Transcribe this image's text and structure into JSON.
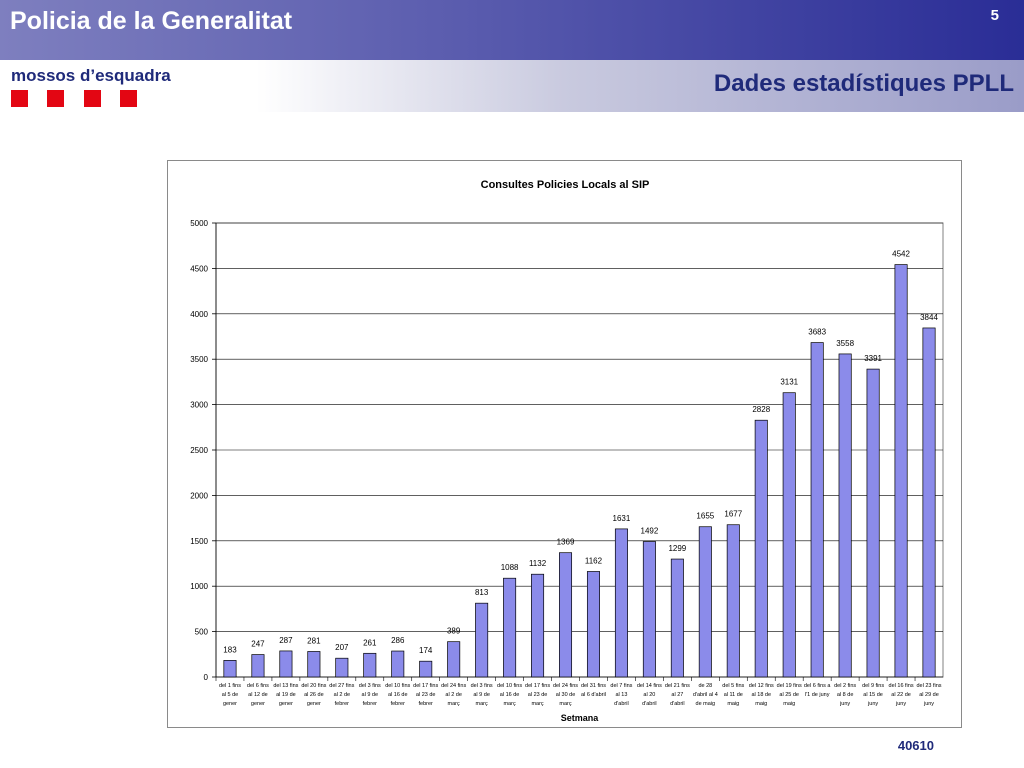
{
  "header": {
    "title": "Policia de la Generalitat",
    "page_number": "5",
    "organization": "mossos d’esquadra",
    "subtitle": "Dades estadístiques PPLL",
    "brand_color": "#1f2a7a",
    "logo_color": "#e30613"
  },
  "footer": {
    "code": "40610"
  },
  "chart_data": {
    "type": "bar",
    "title": "Consultes Policies Locals al SIP",
    "xlabel": "Setmana",
    "ylabel": "",
    "ylim": [
      0,
      5000
    ],
    "yticks": [
      0,
      500,
      1000,
      1500,
      2000,
      2500,
      3000,
      3500,
      4000,
      4500,
      5000
    ],
    "grid": true,
    "bar_color": "#8b8bea",
    "categories": [
      [
        "del 1 fins",
        "al 5 de",
        "gener"
      ],
      [
        "del 6 fins",
        "al 12 de",
        "gener"
      ],
      [
        "del 13 fins",
        "al 19 de",
        "gener"
      ],
      [
        "del 20 fins",
        "al 26 de",
        "gener"
      ],
      [
        "del 27 fins",
        "al 2 de",
        "febrer"
      ],
      [
        "del 3 fins",
        "al 9 de",
        "febrer"
      ],
      [
        "del 10 fins",
        "al 16 de",
        "febrer"
      ],
      [
        "del 17 fins",
        "al 23 de",
        "febrer"
      ],
      [
        "del 24 fins",
        "al 2 de",
        "març"
      ],
      [
        "del 3 fins",
        "al 9 de",
        "març"
      ],
      [
        "del 10 fins",
        "al 16 de",
        "març"
      ],
      [
        "del 17 fins",
        "al 23 de",
        "març"
      ],
      [
        "del 24 fins",
        "al 30 de",
        "març"
      ],
      [
        "del 31 fins",
        "al 6 d'abril",
        ""
      ],
      [
        "del 7 fins",
        "al 13",
        "d'abril"
      ],
      [
        "del 14 fins",
        "al 20",
        "d'abril"
      ],
      [
        "del 21 fins",
        "al 27",
        "d'abril"
      ],
      [
        "de 28",
        "d'abril al 4",
        "de maig"
      ],
      [
        "del 5 fins",
        "al 11 de",
        "maig"
      ],
      [
        "del 12 fins",
        "al 18 de",
        "maig"
      ],
      [
        "del 19 fins",
        "al 25 de",
        "maig"
      ],
      [
        "del 6 fins a",
        "l'1 de juny",
        ""
      ],
      [
        "del 2 fins",
        "al 8 de",
        "juny"
      ],
      [
        "del 9 fins",
        "al 15 de",
        "juny"
      ],
      [
        "del 16 fins",
        "al 22 de",
        "juny"
      ],
      [
        "del 23 fins",
        "al 29 de",
        "juny"
      ]
    ],
    "values": [
      183,
      247,
      287,
      281,
      207,
      261,
      286,
      174,
      389,
      813,
      1088,
      1132,
      1369,
      1162,
      1631,
      1492,
      1299,
      1655,
      1677,
      2828,
      3131,
      3683,
      3558,
      3391,
      4542,
      3844
    ]
  }
}
